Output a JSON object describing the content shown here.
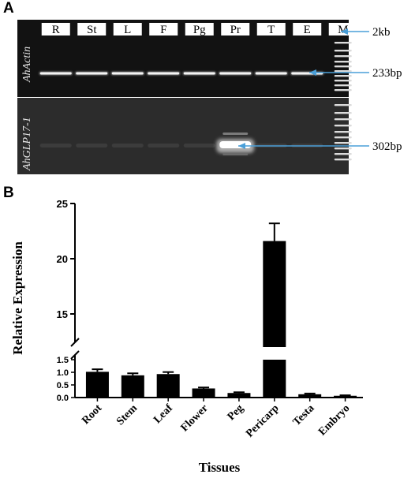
{
  "panel_a": {
    "letter": "A",
    "lanes": [
      "R",
      "St",
      "L",
      "F",
      "Pg",
      "Pr",
      "T",
      "E",
      "M"
    ],
    "genes": [
      "AhActin",
      "AhGLP17-1"
    ],
    "marker_labels": [
      "2kb",
      "233bp",
      "302bp"
    ]
  },
  "panel_b": {
    "letter": "B"
  },
  "chart_data": {
    "type": "bar",
    "categories": [
      "Root",
      "Stem",
      "Leaf",
      "Flower",
      "Peg",
      "Pericarp",
      "Testa",
      "Embryo"
    ],
    "values": [
      1.02,
      0.88,
      0.93,
      0.36,
      0.18,
      21.6,
      0.13,
      0.07
    ],
    "errors": [
      0.1,
      0.08,
      0.08,
      0.04,
      0.03,
      1.6,
      0.03,
      0.02
    ],
    "xlabel": "Tissues",
    "ylabel": "Relative Expression",
    "axis_break": true,
    "lower_segment": {
      "ylim": [
        0,
        1.5
      ],
      "ticks": [
        "0.0",
        "0.5",
        "1.0",
        "1.5"
      ]
    },
    "upper_segment": {
      "ylim": [
        12,
        25
      ],
      "ticks": [
        "15",
        "20",
        "25"
      ]
    },
    "bar_color": "#000000"
  }
}
